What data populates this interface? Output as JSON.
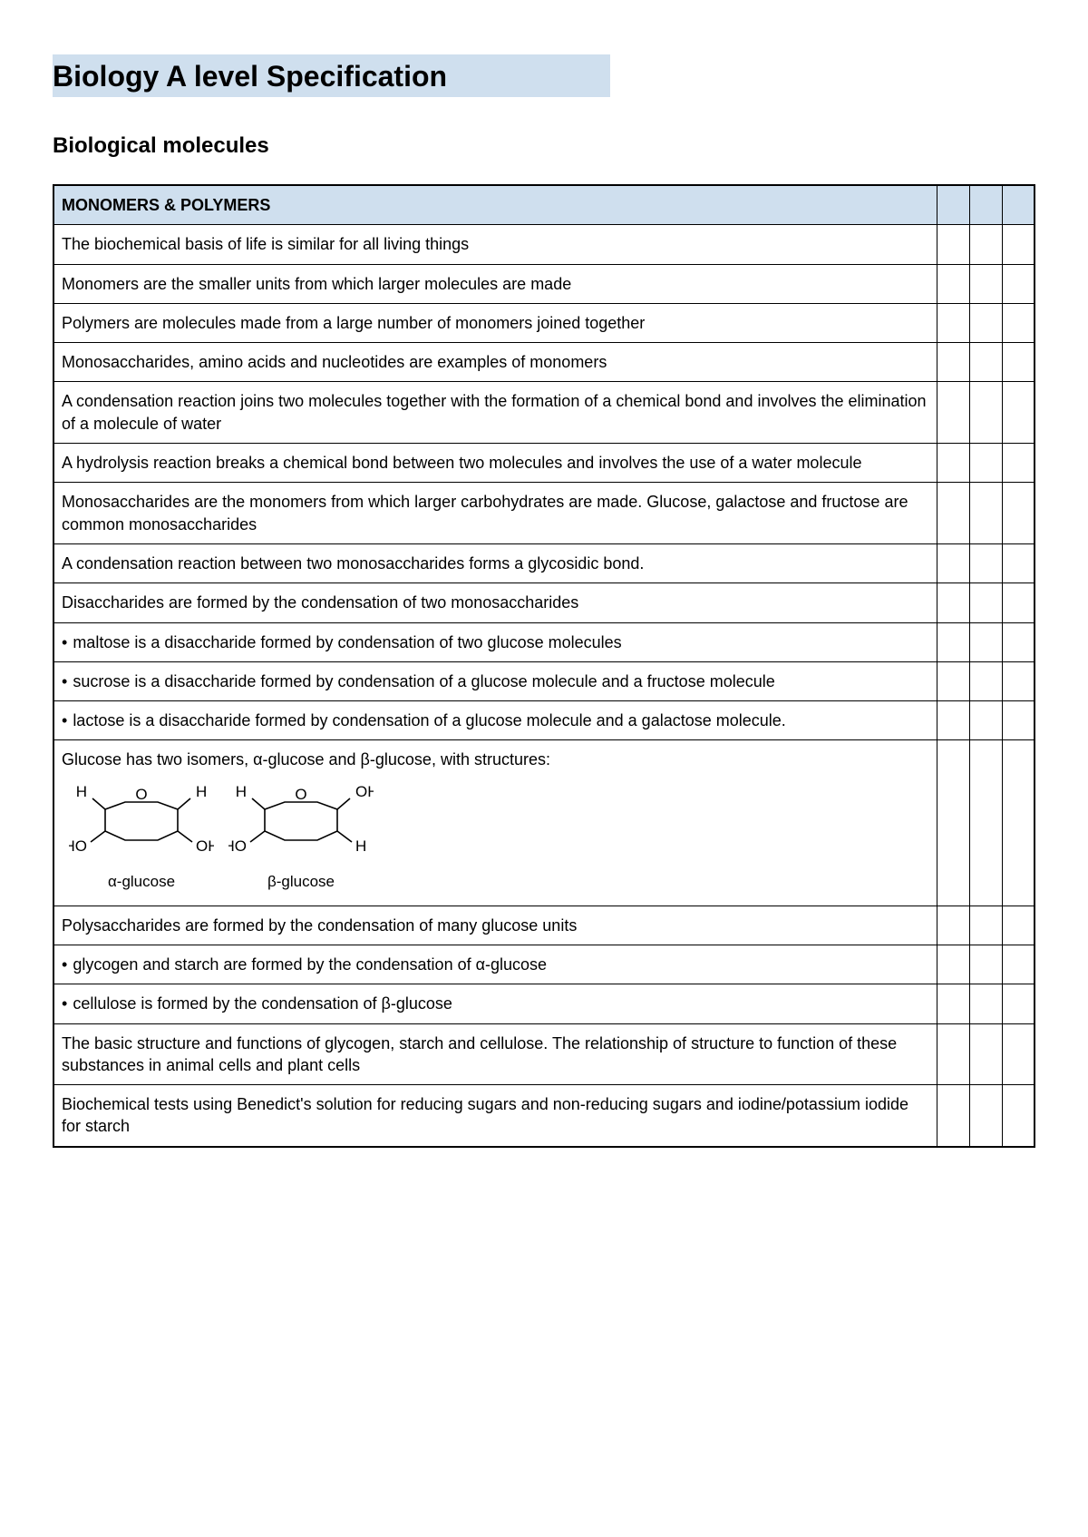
{
  "page": {
    "title": "Biology A level Specification",
    "section_title": "Biological molecules"
  },
  "table": {
    "header": "MONOMERS & POLYMERS",
    "rows": [
      {
        "type": "text",
        "text": "The biochemical basis of life is similar for all living things"
      },
      {
        "type": "text",
        "text": "Monomers are the smaller units from which larger molecules are made"
      },
      {
        "type": "text",
        "text": "Polymers are molecules made from a large number of monomers joined together"
      },
      {
        "type": "text",
        "text": "Monosaccharides, amino acids and nucleotides are examples of monomers"
      },
      {
        "type": "text",
        "text": "A condensation reaction joins two molecules together with the formation of a chemical bond and involves the elimination of a molecule of water"
      },
      {
        "type": "text",
        "text": "A hydrolysis reaction breaks a chemical bond between two molecules and involves the use of a water molecule"
      },
      {
        "type": "text",
        "text": "Monosaccharides are the monomers from which larger carbohydrates are made. Glucose, galactose and fructose are common monosaccharides"
      },
      {
        "type": "text",
        "text": "A condensation reaction between two monosaccharides forms a glycosidic bond."
      },
      {
        "type": "text",
        "text": "Disaccharides are formed by the condensation of two monosaccharides"
      },
      {
        "type": "bullet",
        "text": "maltose is a disaccharide formed by condensation of two glucose molecules"
      },
      {
        "type": "bullet",
        "text": "sucrose is a disaccharide formed by condensation of a glucose molecule and a fructose molecule"
      },
      {
        "type": "bullet",
        "text": "lactose is a disaccharide formed by condensation of a glucose molecule and a galactose molecule."
      },
      {
        "type": "isomer",
        "intro": "Glucose has two isomers, α-glucose and β-glucose, with structures:",
        "alpha": {
          "top_left": "H",
          "top_right": "H",
          "bottom_left": "HO",
          "bottom_right": "OH",
          "ring_o": "O",
          "label": "α-glucose"
        },
        "beta": {
          "top_left": "H",
          "top_right": "OH",
          "bottom_left": "HO",
          "bottom_right": "H",
          "ring_o": "O",
          "label": "β-glucose"
        }
      },
      {
        "type": "text",
        "text": "Polysaccharides are formed by the condensation of many glucose units"
      },
      {
        "type": "bullet",
        "text": "glycogen and starch are formed by the condensation of α-glucose"
      },
      {
        "type": "bullet",
        "text": "cellulose is formed by the condensation of β-glucose"
      },
      {
        "type": "text",
        "text": "The basic structure and functions of glycogen, starch and cellulose. The relationship of structure to function of these substances in animal cells and plant cells"
      },
      {
        "type": "text",
        "text": "Biochemical tests using Benedict's solution for reducing sugars and non-reducing sugars and iodine/potassium iodide for starch"
      }
    ]
  },
  "colors": {
    "highlight_bg": "#cfdfee",
    "border": "#000000",
    "text": "#000000"
  }
}
